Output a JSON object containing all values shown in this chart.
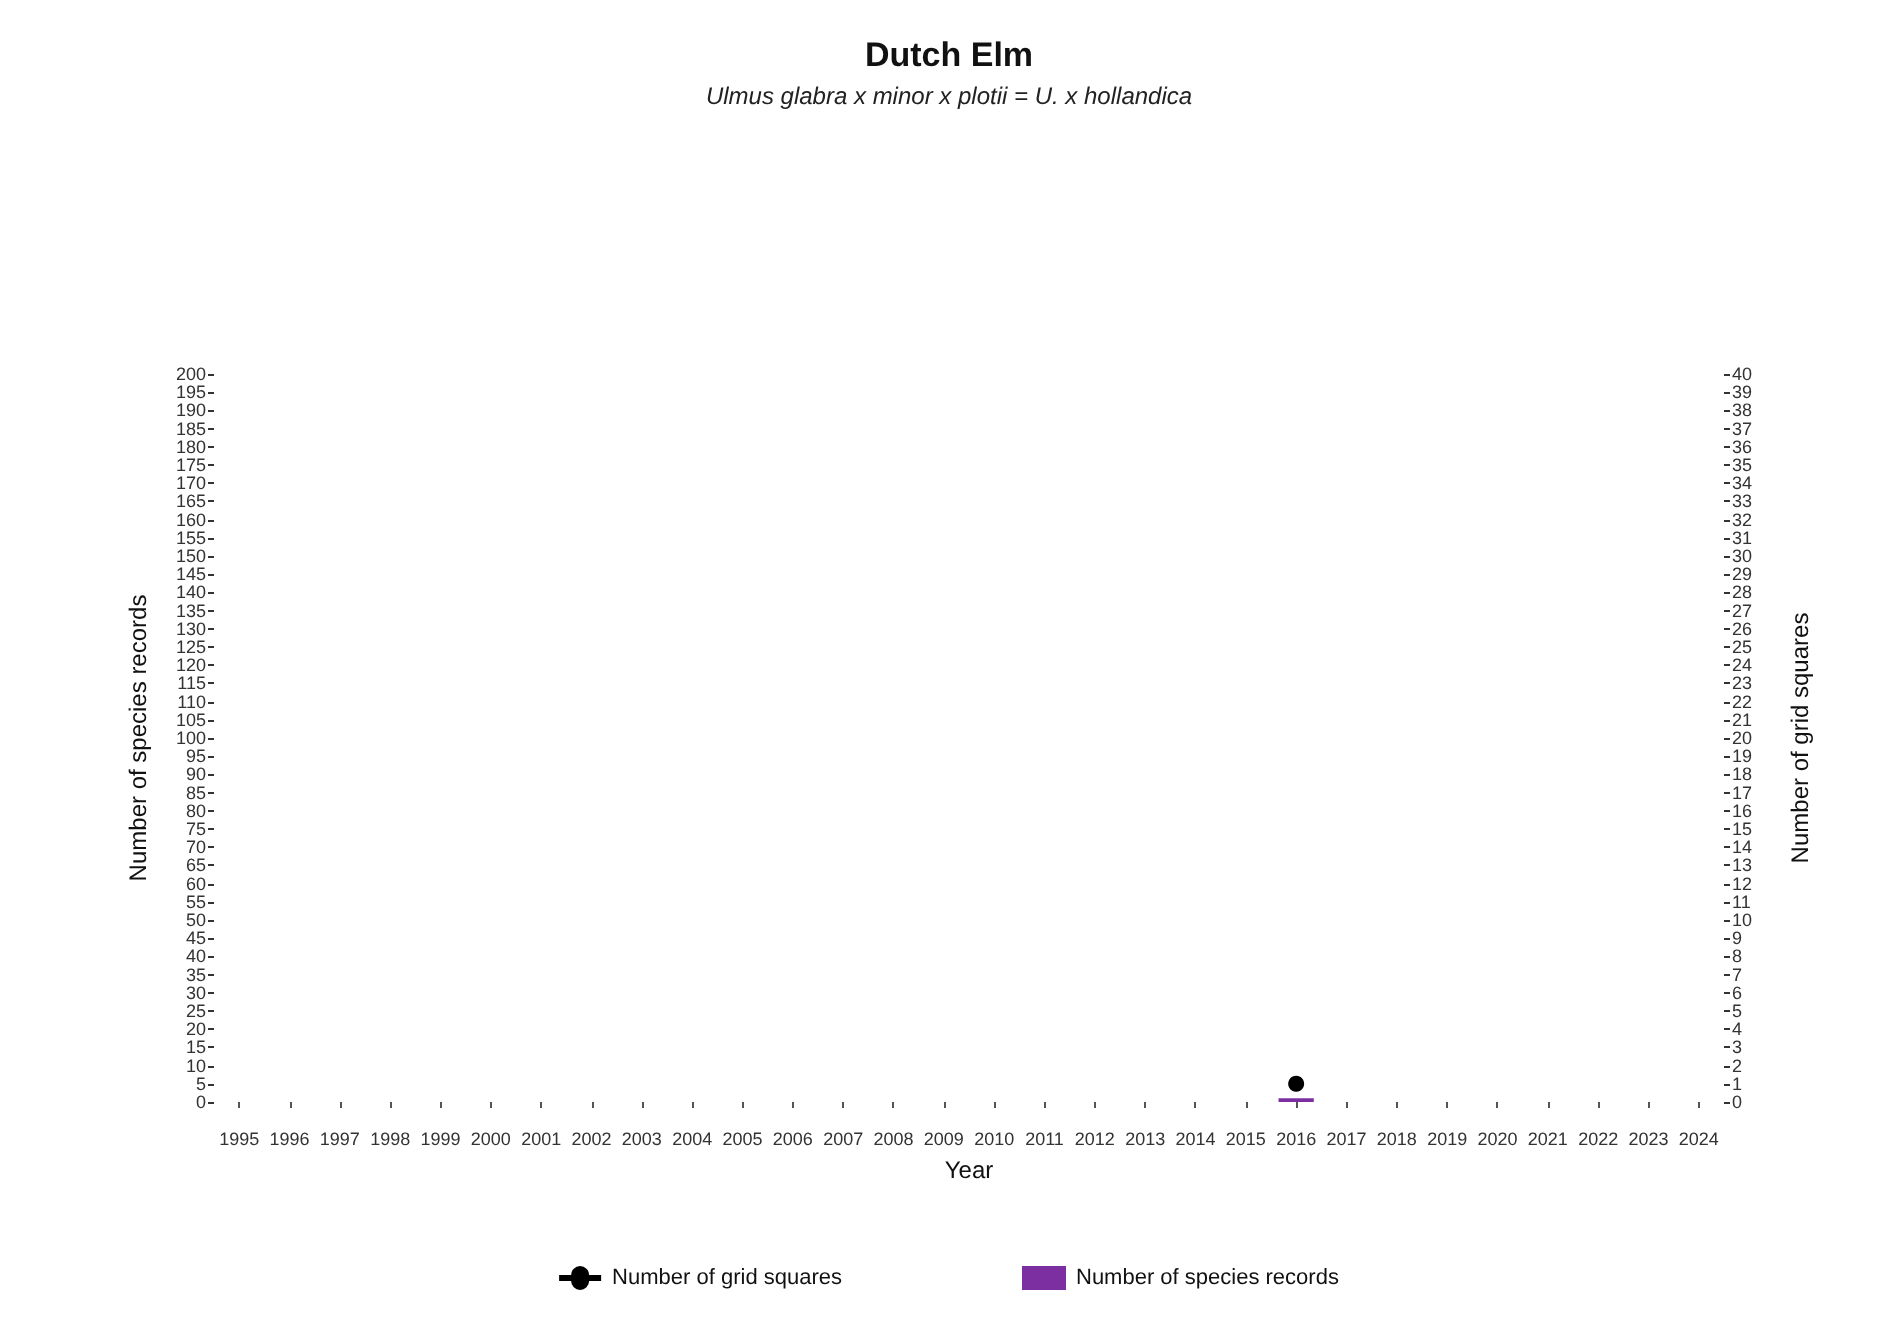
{
  "chart_data": {
    "type": "bar",
    "title": "Dutch Elm",
    "subtitle": "Ulmus glabra x minor x plotii = U. x hollandica",
    "xlabel": "Year",
    "ylabel": "Number of species records",
    "y2label": "Number of grid squares",
    "categories": [
      "1995",
      "1996",
      "1997",
      "1998",
      "1999",
      "2000",
      "2001",
      "2002",
      "2003",
      "2004",
      "2005",
      "2006",
      "2007",
      "2008",
      "2009",
      "2010",
      "2011",
      "2012",
      "2013",
      "2014",
      "2015",
      "2016",
      "2017",
      "2018",
      "2019",
      "2020",
      "2021",
      "2022",
      "2023",
      "2024"
    ],
    "series": [
      {
        "name": "Number of grid squares",
        "type": "line",
        "axis": "y2",
        "color": "#000000",
        "marker": "circle",
        "values": [
          null,
          null,
          null,
          null,
          null,
          null,
          null,
          null,
          null,
          null,
          null,
          null,
          null,
          null,
          null,
          null,
          null,
          null,
          null,
          null,
          null,
          1,
          null,
          null,
          null,
          null,
          null,
          null,
          null,
          null
        ]
      },
      {
        "name": "Number of species records",
        "color": "#7b2fa0",
        "values": [
          null,
          null,
          null,
          null,
          null,
          null,
          null,
          null,
          null,
          null,
          null,
          null,
          null,
          null,
          null,
          null,
          null,
          null,
          null,
          null,
          null,
          1,
          null,
          null,
          null,
          null,
          null,
          null,
          null,
          null
        ]
      }
    ],
    "ylim": [
      0,
      200
    ],
    "yticks": [
      0,
      5,
      10,
      15,
      20,
      25,
      30,
      35,
      40,
      45,
      50,
      55,
      60,
      65,
      70,
      75,
      80,
      85,
      90,
      95,
      100,
      105,
      110,
      115,
      120,
      125,
      130,
      135,
      140,
      145,
      150,
      155,
      160,
      165,
      170,
      175,
      180,
      185,
      190,
      195,
      200
    ],
    "y2lim": [
      0,
      40
    ],
    "y2ticks": [
      0,
      1,
      2,
      3,
      4,
      5,
      6,
      7,
      8,
      9,
      10,
      11,
      12,
      13,
      14,
      15,
      16,
      17,
      18,
      19,
      20,
      21,
      22,
      23,
      24,
      25,
      26,
      27,
      28,
      29,
      30,
      31,
      32,
      33,
      34,
      35,
      36,
      37,
      38,
      39,
      40
    ],
    "grid": false,
    "legend": "bottom"
  }
}
